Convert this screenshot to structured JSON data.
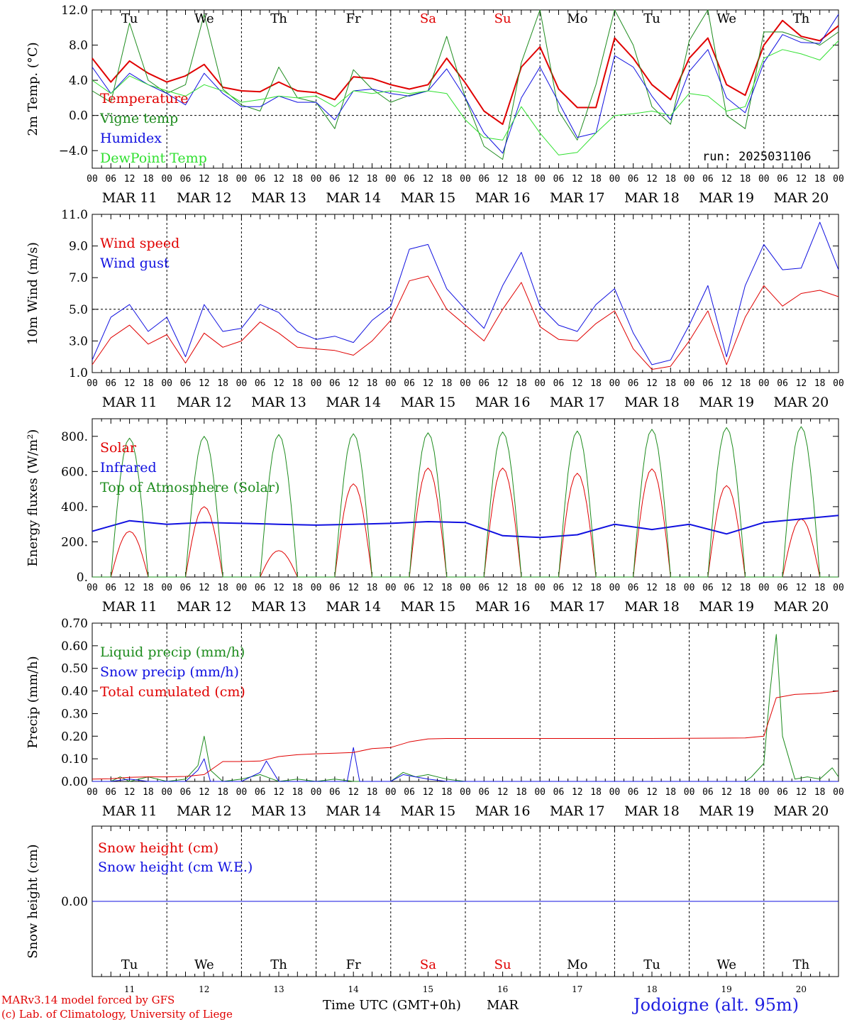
{
  "run_label": "run: 2025031106",
  "xlabel": "Time UTC (GMT+0h)",
  "month": "MAR",
  "credit_line1": "MARv3.14 model forced by GFS",
  "credit_line2": "(c) Lab. of Climatology, University of Liege",
  "station": "Jodoigne (alt. 95m)",
  "hour_ticks": [
    "00",
    "06",
    "12",
    "18"
  ],
  "final_tick": "00",
  "day_labels": [
    "MAR 11",
    "MAR 12",
    "MAR 13",
    "MAR 14",
    "MAR 15",
    "MAR 16",
    "MAR 17",
    "MAR 18",
    "MAR 19",
    "MAR 20"
  ],
  "day_numbers": [
    "11",
    "12",
    "13",
    "14",
    "15",
    "16",
    "17",
    "18",
    "19",
    "20"
  ],
  "weekdays": [
    {
      "label": "Tu",
      "weekend": false
    },
    {
      "label": "We",
      "weekend": false
    },
    {
      "label": "Th",
      "weekend": false
    },
    {
      "label": "Fr",
      "weekend": false
    },
    {
      "label": "Sa",
      "weekend": true
    },
    {
      "label": "Su",
      "weekend": true
    },
    {
      "label": "Mo",
      "weekend": false
    },
    {
      "label": "Tu",
      "weekend": false
    },
    {
      "label": "We",
      "weekend": false
    },
    {
      "label": "Th",
      "weekend": false
    }
  ],
  "colors": {
    "red": "#e00000",
    "green": "#1e8c1e",
    "blue": "#1010e0",
    "lightgreen": "#30e030",
    "weekend": "#e00000",
    "station": "#2020e0"
  },
  "chart_data": [
    {
      "type": "line",
      "ylabel": "2m Temp. (°C)",
      "ylim": [
        -6,
        12
      ],
      "yticks": [
        {
          "v": 12,
          "label": "12.0"
        },
        {
          "v": 8,
          "label": "8.0"
        },
        {
          "v": 4,
          "label": "4.0"
        },
        {
          "v": 0,
          "label": "0.0"
        },
        {
          "v": -4,
          "label": "−4.0"
        }
      ],
      "ref_line": 0,
      "x_unit": "hours since MAR 11 00 UTC",
      "series": [
        {
          "name": "Temperature",
          "color": "#e00000",
          "width": 2,
          "x": [
            0,
            6,
            12,
            18,
            24,
            30,
            36,
            42,
            48,
            54,
            60,
            66,
            72,
            78,
            84,
            90,
            96,
            102,
            108,
            114,
            120,
            126,
            132,
            138,
            144,
            150,
            156,
            162,
            168,
            174,
            180,
            186,
            192,
            198,
            204,
            210,
            216,
            222,
            228,
            234,
            240
          ],
          "y": [
            6.5,
            3.8,
            6.2,
            4.8,
            3.8,
            4.5,
            5.8,
            3.2,
            2.8,
            2.7,
            3.8,
            2.8,
            2.6,
            1.8,
            4.4,
            4.2,
            3.5,
            3.0,
            3.5,
            6.5,
            3.7,
            0.5,
            -1.0,
            5.5,
            7.8,
            3.0,
            0.9,
            0.9,
            8.8,
            6.5,
            3.5,
            1.8,
            6.5,
            8.8,
            3.5,
            2.3,
            8.0,
            10.8,
            9.0,
            8.5,
            10.2
          ]
        },
        {
          "name": "Vigne temp",
          "color": "#1e8c1e",
          "width": 1,
          "x": [
            0,
            6,
            12,
            18,
            24,
            30,
            36,
            42,
            48,
            54,
            60,
            66,
            72,
            78,
            84,
            90,
            96,
            102,
            108,
            114,
            120,
            126,
            132,
            138,
            144,
            150,
            156,
            162,
            168,
            174,
            180,
            186,
            192,
            198,
            204,
            210,
            216,
            222,
            228,
            234,
            240
          ],
          "y": [
            2.8,
            1.5,
            10.5,
            4.0,
            2.5,
            3.5,
            11.5,
            3.0,
            1.2,
            0.5,
            5.5,
            2.0,
            1.5,
            -1.5,
            5.2,
            3.0,
            1.5,
            2.3,
            2.8,
            9.0,
            2.0,
            -3.5,
            -5.0,
            6.0,
            12.0,
            0.5,
            -2.8,
            3.5,
            12.0,
            8.0,
            1.0,
            -1.0,
            8.5,
            12.0,
            0.0,
            -1.5,
            9.5,
            9.5,
            8.8,
            8.0,
            9.5
          ]
        },
        {
          "name": "Humidex",
          "color": "#1010e0",
          "width": 1,
          "x": [
            0,
            6,
            12,
            18,
            24,
            30,
            36,
            42,
            48,
            54,
            60,
            66,
            72,
            78,
            84,
            90,
            96,
            102,
            108,
            114,
            120,
            126,
            132,
            138,
            144,
            150,
            156,
            162,
            168,
            174,
            180,
            186,
            192,
            198,
            204,
            210,
            216,
            222,
            228,
            234,
            240
          ],
          "y": [
            5.5,
            2.5,
            4.8,
            3.5,
            2.5,
            1.2,
            4.8,
            2.5,
            1.0,
            1.0,
            2.2,
            1.5,
            1.5,
            -0.5,
            2.8,
            3.0,
            2.5,
            2.2,
            2.8,
            5.3,
            2.0,
            -2.0,
            -4.3,
            2.0,
            5.5,
            1.5,
            -2.5,
            -2.0,
            6.8,
            5.5,
            2.2,
            -0.5,
            5.0,
            7.5,
            2.0,
            0.3,
            6.0,
            9.2,
            8.3,
            8.2,
            11.5
          ]
        },
        {
          "name": "DewPoint Temp",
          "color": "#30e030",
          "width": 1,
          "x": [
            0,
            6,
            12,
            18,
            24,
            30,
            36,
            42,
            48,
            54,
            60,
            66,
            72,
            78,
            84,
            90,
            96,
            102,
            108,
            114,
            120,
            126,
            132,
            138,
            144,
            150,
            156,
            162,
            168,
            174,
            180,
            186,
            192,
            198,
            204,
            210,
            216,
            222,
            228,
            234,
            240
          ],
          "y": [
            4.0,
            2.5,
            4.5,
            3.5,
            2.8,
            2.2,
            3.5,
            2.8,
            1.5,
            1.8,
            2.2,
            2.0,
            2.2,
            1.0,
            2.8,
            2.5,
            2.8,
            2.5,
            2.8,
            2.5,
            -0.5,
            -2.5,
            -2.8,
            1.0,
            -2.0,
            -4.5,
            -4.2,
            -2.0,
            0.0,
            0.2,
            0.5,
            0.0,
            2.5,
            2.2,
            0.5,
            1.0,
            6.5,
            7.5,
            7.0,
            6.3,
            8.5
          ]
        }
      ]
    },
    {
      "type": "line",
      "ylabel": "10m Wind (m/s)",
      "ylim": [
        1,
        11
      ],
      "yticks": [
        {
          "v": 11,
          "label": "11.0"
        },
        {
          "v": 9,
          "label": "9.0"
        },
        {
          "v": 7,
          "label": "7.0"
        },
        {
          "v": 5,
          "label": "5.0"
        },
        {
          "v": 3,
          "label": "3.0"
        },
        {
          "v": 1,
          "label": "1.0"
        }
      ],
      "ref_line": 5,
      "x_unit": "hours since MAR 11 00 UTC",
      "series": [
        {
          "name": "Wind speed",
          "color": "#e00000",
          "width": 1,
          "x": [
            0,
            6,
            12,
            18,
            24,
            30,
            36,
            42,
            48,
            54,
            60,
            66,
            72,
            78,
            84,
            90,
            96,
            102,
            108,
            114,
            120,
            126,
            132,
            138,
            144,
            150,
            156,
            162,
            168,
            174,
            180,
            186,
            192,
            198,
            204,
            210,
            216,
            222,
            228,
            234,
            240
          ],
          "y": [
            1.5,
            3.2,
            4.0,
            2.8,
            3.4,
            1.6,
            3.5,
            2.6,
            3.0,
            4.2,
            3.5,
            2.6,
            2.5,
            2.4,
            2.1,
            3.0,
            4.3,
            6.8,
            7.1,
            5.0,
            4.0,
            3.0,
            5.0,
            6.7,
            3.9,
            3.1,
            3.0,
            4.1,
            4.9,
            2.5,
            1.2,
            1.4,
            3.0,
            4.9,
            1.5,
            4.5,
            6.5,
            5.2,
            6.0,
            6.2,
            5.8
          ]
        },
        {
          "name": "Wind gust",
          "color": "#1010e0",
          "width": 1,
          "x": [
            0,
            6,
            12,
            18,
            24,
            30,
            36,
            42,
            48,
            54,
            60,
            66,
            72,
            78,
            84,
            90,
            96,
            102,
            108,
            114,
            120,
            126,
            132,
            138,
            144,
            150,
            156,
            162,
            168,
            174,
            180,
            186,
            192,
            198,
            204,
            210,
            216,
            222,
            228,
            234,
            240
          ],
          "y": [
            1.8,
            4.5,
            5.3,
            3.6,
            4.5,
            2.0,
            5.3,
            3.6,
            3.8,
            5.3,
            4.8,
            3.6,
            3.1,
            3.3,
            2.9,
            4.3,
            5.2,
            8.8,
            9.1,
            6.3,
            5.0,
            3.8,
            6.5,
            8.6,
            5.2,
            4.0,
            3.6,
            5.3,
            6.3,
            3.5,
            1.5,
            1.8,
            4.0,
            6.5,
            2.0,
            6.5,
            9.1,
            7.5,
            7.6,
            10.5,
            7.5
          ]
        }
      ]
    },
    {
      "type": "line",
      "ylabel": "Energy fluxes (W/m²)",
      "ylim": [
        0,
        900
      ],
      "yticks": [
        {
          "v": 800,
          "label": "800."
        },
        {
          "v": 600,
          "label": "600."
        },
        {
          "v": 400,
          "label": "400."
        },
        {
          "v": 200,
          "label": "200."
        },
        {
          "v": 0,
          "label": "0."
        }
      ],
      "x_unit": "hours since MAR 11 00 UTC",
      "series": [
        {
          "name": "Solar",
          "color": "#e00000",
          "width": 1,
          "daily_peaks": [
            260,
            400,
            150,
            530,
            620,
            620,
            590,
            615,
            520,
            330
          ],
          "note": "diurnal curve, zero at night"
        },
        {
          "name": "Infrared",
          "color": "#1010e0",
          "width": 2,
          "x": [
            0,
            12,
            24,
            36,
            48,
            60,
            72,
            84,
            96,
            108,
            120,
            132,
            144,
            156,
            168,
            180,
            192,
            204,
            216,
            228,
            240
          ],
          "y": [
            260,
            320,
            300,
            310,
            305,
            300,
            295,
            300,
            305,
            315,
            310,
            235,
            225,
            240,
            300,
            270,
            300,
            245,
            310,
            330,
            350
          ]
        },
        {
          "name": "Top of Atmosphere (Solar)",
          "color": "#1e8c1e",
          "width": 1,
          "daily_peaks": [
            790,
            800,
            810,
            815,
            820,
            825,
            830,
            840,
            850,
            855
          ],
          "note": "diurnal curve, zero at night"
        }
      ]
    },
    {
      "type": "line",
      "ylabel": "Precip (mm/h)",
      "ylim": [
        0,
        0.7
      ],
      "yticks": [
        {
          "v": 0.7,
          "label": "0.70"
        },
        {
          "v": 0.6,
          "label": "0.60"
        },
        {
          "v": 0.5,
          "label": "0.50"
        },
        {
          "v": 0.4,
          "label": "0.40"
        },
        {
          "v": 0.3,
          "label": "0.30"
        },
        {
          "v": 0.2,
          "label": "0.20"
        },
        {
          "v": 0.1,
          "label": "0.10"
        },
        {
          "v": 0,
          "label": "0.00"
        }
      ],
      "x_unit": "hours since MAR 11 00 UTC",
      "series": [
        {
          "name": "Liquid precip (mm/h)",
          "color": "#1e8c1e",
          "width": 1,
          "x": [
            0,
            6,
            9,
            12,
            18,
            24,
            30,
            34,
            36,
            38,
            42,
            48,
            54,
            58,
            60,
            66,
            72,
            78,
            84,
            90,
            96,
            100,
            104,
            108,
            114,
            120,
            150,
            180,
            210,
            212,
            216,
            218,
            220,
            222,
            226,
            230,
            234,
            238,
            240
          ],
          "y": [
            0,
            0,
            0.02,
            0,
            0.02,
            0,
            0.01,
            0.07,
            0.2,
            0.05,
            0,
            0.01,
            0.03,
            0.01,
            0,
            0.01,
            0,
            0.01,
            0,
            0,
            0,
            0.04,
            0.02,
            0.03,
            0.01,
            0,
            0,
            0,
            0,
            0.02,
            0.08,
            0.4,
            0.65,
            0.2,
            0.01,
            0.02,
            0.01,
            0.06,
            0.02
          ]
        },
        {
          "name": "Snow precip (mm/h)",
          "color": "#1010e0",
          "width": 1,
          "x": [
            0,
            6,
            12,
            18,
            24,
            30,
            34,
            36,
            38,
            42,
            48,
            54,
            56,
            60,
            66,
            72,
            78,
            82,
            84,
            86,
            90,
            96,
            100,
            104,
            108,
            114,
            120,
            240
          ],
          "y": [
            0,
            0,
            0.01,
            0,
            0,
            0,
            0.05,
            0.1,
            0,
            0,
            0,
            0.04,
            0.09,
            0,
            0,
            0,
            0,
            0,
            0.15,
            0,
            0,
            0,
            0.03,
            0.02,
            0.01,
            0,
            0,
            0
          ]
        },
        {
          "name": "Total cumulated (cm)",
          "color": "#e00000",
          "width": 1,
          "x": [
            0,
            6,
            12,
            18,
            24,
            30,
            36,
            42,
            48,
            54,
            60,
            66,
            72,
            78,
            84,
            90,
            96,
            102,
            108,
            114,
            120,
            150,
            180,
            210,
            216,
            220,
            226,
            234,
            240
          ],
          "y": [
            0.01,
            0.012,
            0.018,
            0.02,
            0.02,
            0.022,
            0.03,
            0.088,
            0.088,
            0.09,
            0.11,
            0.118,
            0.122,
            0.125,
            0.128,
            0.145,
            0.15,
            0.175,
            0.188,
            0.19,
            0.19,
            0.19,
            0.19,
            0.192,
            0.2,
            0.37,
            0.385,
            0.39,
            0.4
          ]
        }
      ]
    },
    {
      "type": "line",
      "ylabel": "Snow height (cm)",
      "ylim": [
        -1,
        1
      ],
      "yticks": [
        {
          "v": 0,
          "label": "0.00"
        }
      ],
      "x_unit": "hours since MAR 11 00 UTC",
      "series": [
        {
          "name": "Snow height (cm)",
          "color": "#e00000",
          "width": 1,
          "x": [
            0,
            240
          ],
          "y": [
            0,
            0
          ]
        },
        {
          "name": "Snow height (cm W.E.)",
          "color": "#1010e0",
          "width": 1,
          "x": [
            0,
            240
          ],
          "y": [
            0,
            0
          ]
        }
      ]
    }
  ]
}
